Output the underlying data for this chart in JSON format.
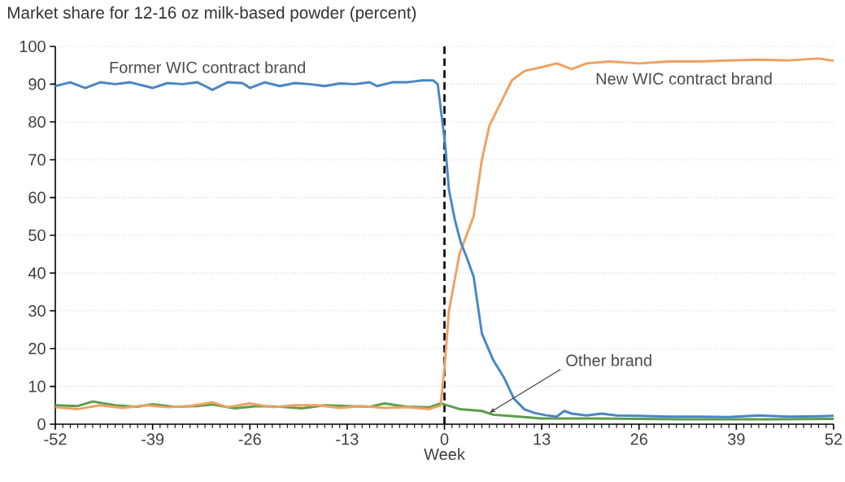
{
  "chart_data": {
    "type": "line",
    "title": "Market share for 12-16 oz milk-based powder (percent)",
    "xlabel": "Week",
    "xlim": [
      -52,
      52
    ],
    "xticks": [
      -52,
      -39,
      -26,
      -13,
      0,
      13,
      26,
      39,
      52
    ],
    "ylim": [
      0,
      100
    ],
    "yticks": [
      0,
      10,
      20,
      30,
      40,
      50,
      60,
      70,
      80,
      90,
      100
    ],
    "grid": "y",
    "marker": "none",
    "line_style": "solid",
    "ref_lines": [
      {
        "axis": "x",
        "value": 0,
        "color": "#000000",
        "line_style": "dashed"
      }
    ],
    "series": [
      {
        "name": "Former WIC contract brand",
        "color": "#4a86c5",
        "x": [
          -52,
          -50,
          -48,
          -46,
          -44,
          -42,
          -40,
          -39,
          -37,
          -35,
          -33,
          -31,
          -29,
          -27,
          -26,
          -24,
          -22,
          -20,
          -18,
          -16,
          -14,
          -12,
          -10,
          -9,
          -7,
          -5,
          -3,
          -1.5,
          -0.9,
          0.1,
          0.6,
          1.4,
          2.2,
          3,
          3.9,
          5,
          6.5,
          7.9,
          9.3,
          10.7,
          12,
          13.5,
          15,
          16,
          17,
          19,
          21,
          23,
          26,
          30,
          34,
          38,
          42,
          46,
          50,
          52
        ],
        "values": [
          89.5,
          90.5,
          89,
          90.5,
          90,
          90.5,
          89.5,
          89,
          90.3,
          90,
          90.5,
          88.5,
          90.5,
          90.3,
          89,
          90.5,
          89.5,
          90.3,
          90,
          89.5,
          90.2,
          90,
          90.5,
          89.5,
          90.5,
          90.5,
          91,
          91,
          90,
          74,
          62,
          54,
          48,
          44,
          39,
          24,
          17,
          12.5,
          6.7,
          3.9,
          3,
          2.4,
          2,
          3.5,
          2.8,
          2.3,
          2.8,
          2.3,
          2.2,
          2,
          2,
          1.9,
          2.3,
          2,
          2.1,
          2.2
        ]
      },
      {
        "name": "New WIC contract brand",
        "color": "#f0a060",
        "x": [
          -52,
          -49,
          -46,
          -43,
          -40,
          -37,
          -34,
          -31,
          -29,
          -26,
          -23,
          -20,
          -17,
          -14,
          -11,
          -8,
          -5,
          -2,
          -0.5,
          0,
          0.6,
          2,
          3.9,
          5,
          6,
          7.5,
          9,
          10.7,
          13,
          15,
          17,
          19,
          22,
          26,
          30,
          34,
          38,
          42,
          46,
          50,
          52
        ],
        "values": [
          4.5,
          4,
          5,
          4.3,
          5,
          4.5,
          4.8,
          5.8,
          4.5,
          5.5,
          4.5,
          5,
          5,
          4.3,
          4.8,
          4.3,
          4.5,
          4,
          5,
          15,
          30,
          45,
          55,
          70,
          79,
          85,
          91,
          93.5,
          94.5,
          95.5,
          94,
          95.5,
          96,
          95.5,
          96,
          96,
          96.3,
          96.5,
          96.3,
          96.8,
          96.2
        ]
      },
      {
        "name": "Other brand",
        "color": "#5a9e4a",
        "x": [
          -52,
          -49,
          -47,
          -44,
          -41,
          -39,
          -36,
          -33,
          -31,
          -28,
          -25,
          -22,
          -19,
          -16,
          -13,
          -10,
          -8,
          -5,
          -2,
          -0.5,
          2,
          5,
          6.5,
          10,
          13,
          16,
          20,
          26,
          32,
          38,
          44,
          52
        ],
        "values": [
          5,
          4.8,
          6,
          5,
          4.6,
          5.3,
          4.6,
          4.8,
          5.2,
          4.2,
          4.8,
          4.6,
          4.2,
          5,
          4.8,
          4.6,
          5.5,
          4.6,
          4.5,
          5.5,
          4,
          3.5,
          2.5,
          2,
          1.5,
          1.5,
          1.5,
          1.4,
          1.3,
          1.3,
          1.3,
          1.4
        ]
      }
    ]
  }
}
